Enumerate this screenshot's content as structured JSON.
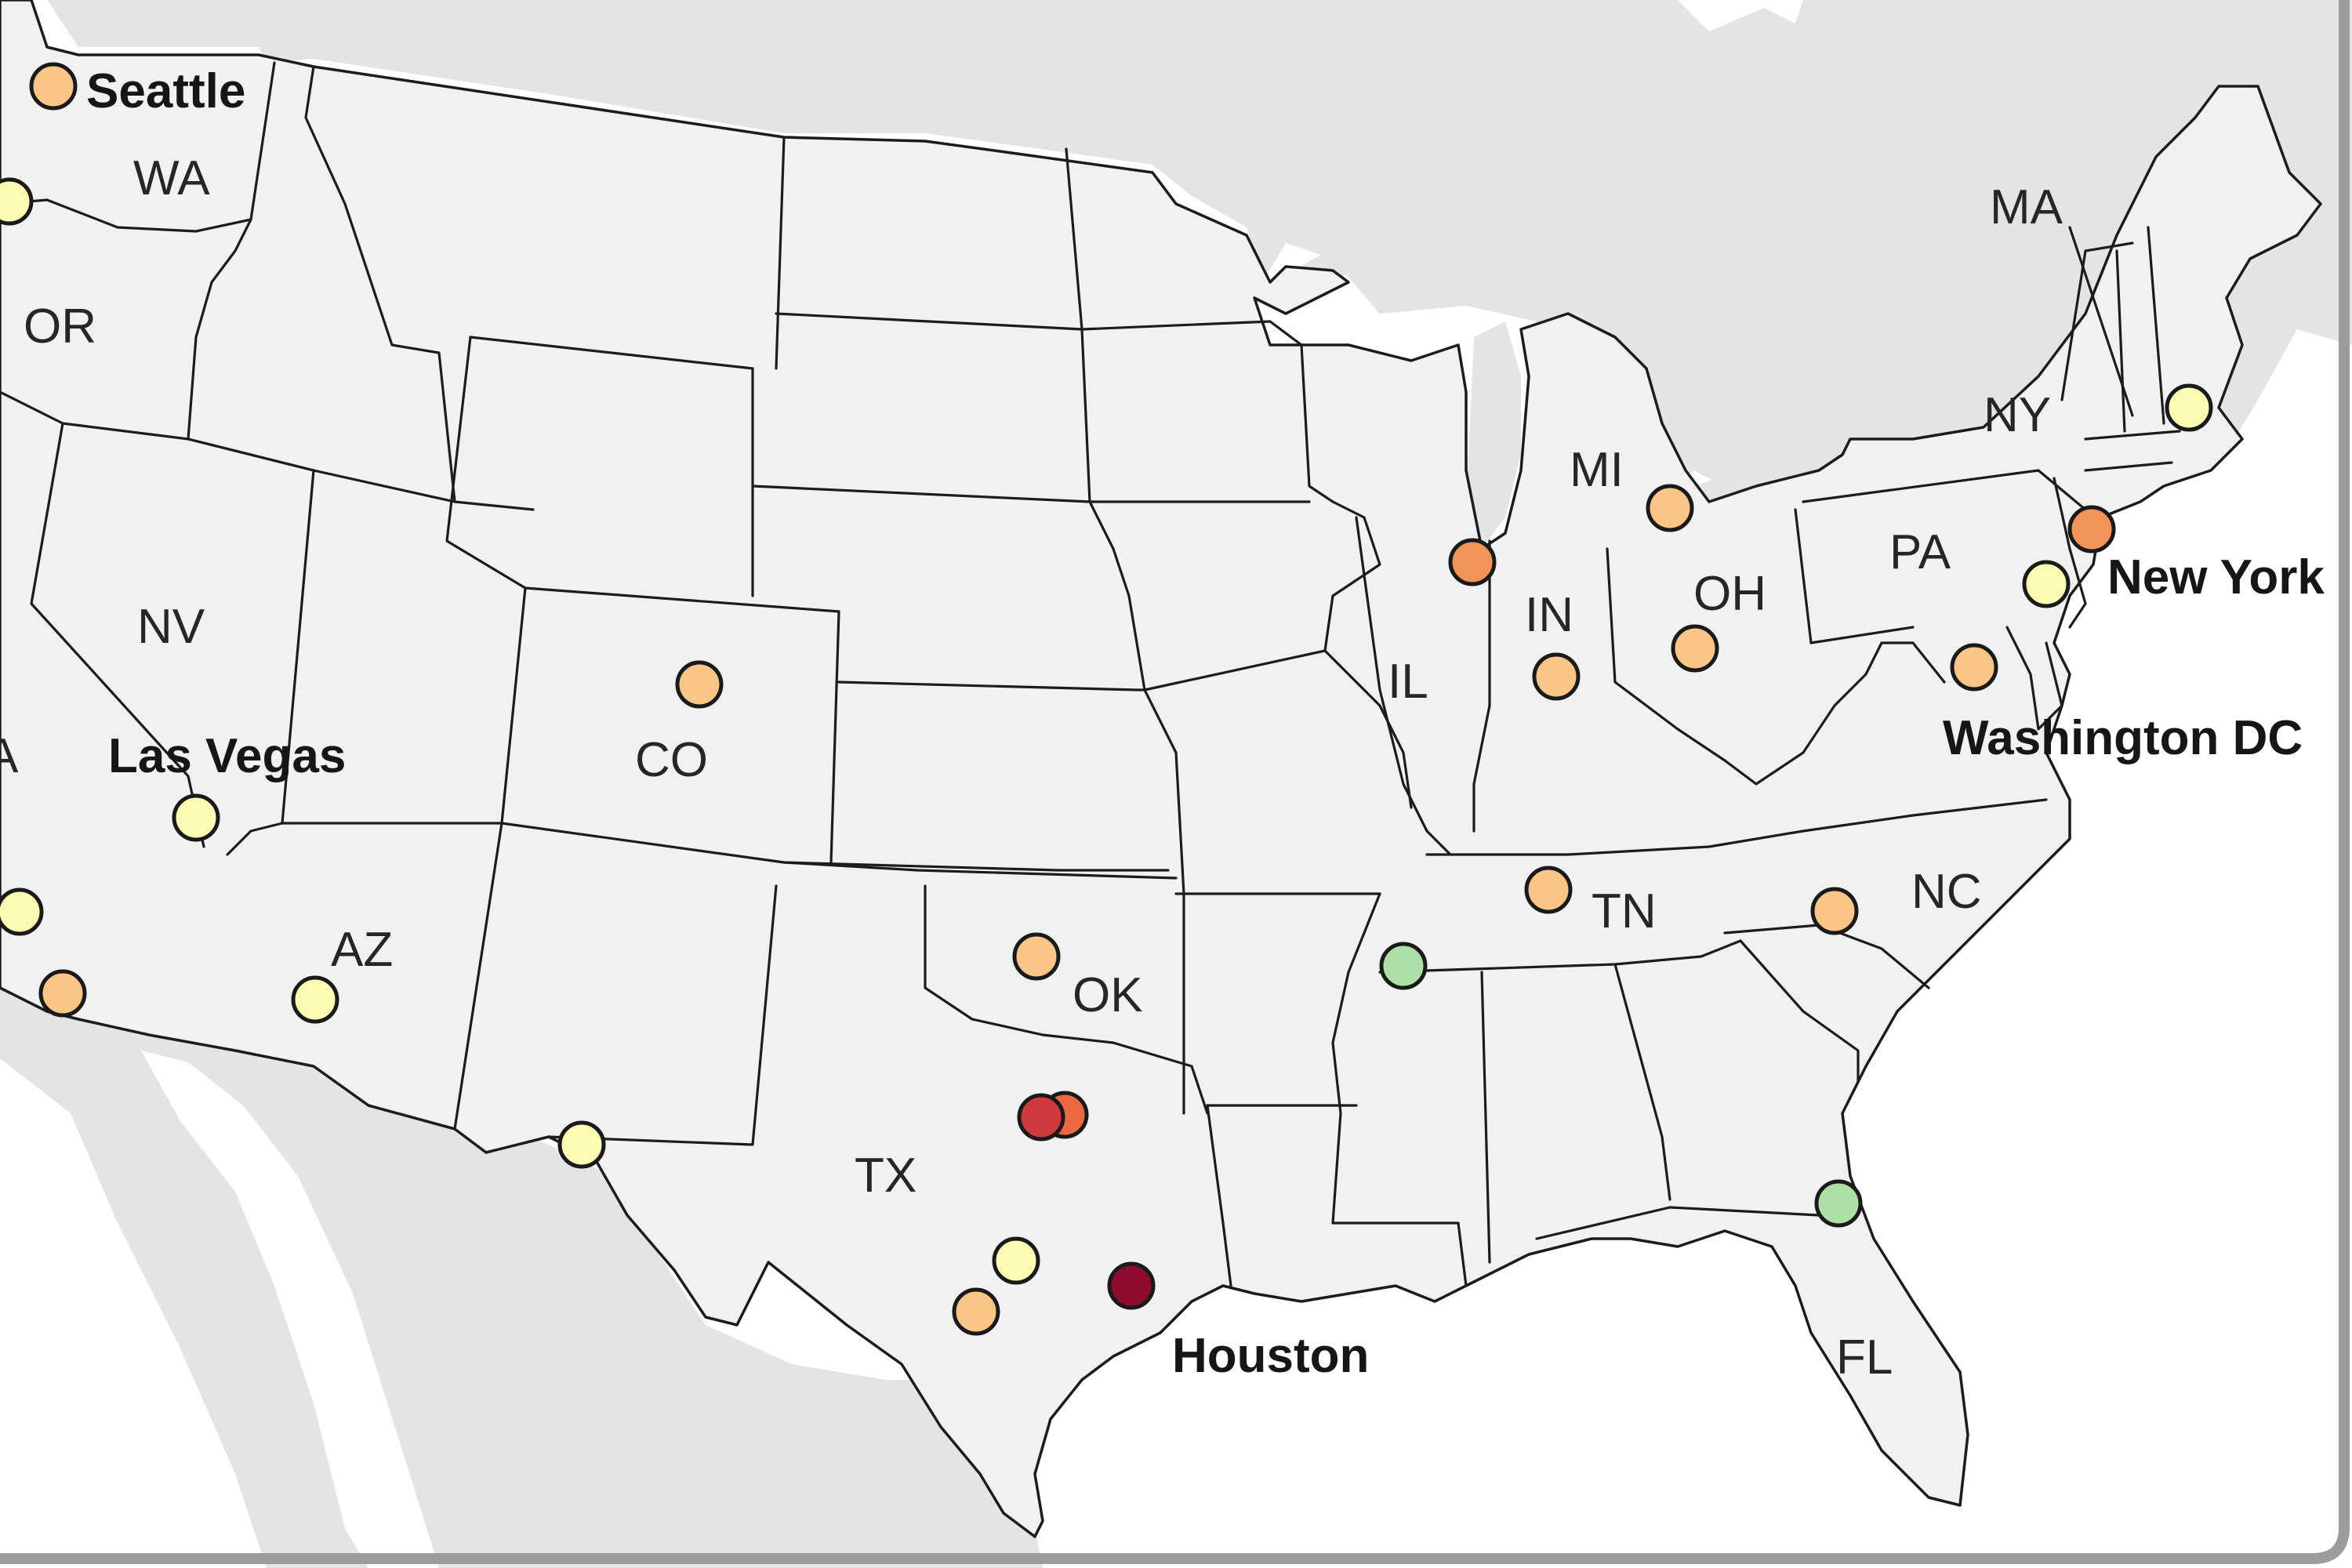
{
  "colors": {
    "ocean": "#ffffff",
    "foreign_land": "#e3e4e6",
    "us_land": "#f1f1f2",
    "border": "#1c1c1c",
    "frame": "#9c9c9e",
    "scale": {
      "pale_yellow": "#fdfbb3",
      "light_orange": "#f9c688",
      "orange": "#f2935a",
      "red_orange": "#ea6940",
      "red": "#d03a3e",
      "dark_red": "#8d0b2c",
      "green": "#ade0a6"
    }
  },
  "state_labels": [
    {
      "id": "wa",
      "text": "WA"
    },
    {
      "id": "or",
      "text": "OR"
    },
    {
      "id": "nv",
      "text": "NV"
    },
    {
      "id": "ca",
      "text": "A"
    },
    {
      "id": "az",
      "text": "AZ"
    },
    {
      "id": "co",
      "text": "CO"
    },
    {
      "id": "tx",
      "text": "TX"
    },
    {
      "id": "ok",
      "text": "OK"
    },
    {
      "id": "il",
      "text": "IL"
    },
    {
      "id": "in",
      "text": "IN"
    },
    {
      "id": "mi",
      "text": "MI"
    },
    {
      "id": "oh",
      "text": "OH"
    },
    {
      "id": "pa",
      "text": "PA"
    },
    {
      "id": "ny",
      "text": "NY"
    },
    {
      "id": "ma",
      "text": "MA"
    },
    {
      "id": "tn",
      "text": "TN"
    },
    {
      "id": "nc",
      "text": "NC"
    },
    {
      "id": "fl",
      "text": "FL"
    }
  ],
  "city_labels": [
    {
      "id": "seattle",
      "text": "Seattle"
    },
    {
      "id": "las-vegas",
      "text": "Las Vegas"
    },
    {
      "id": "houston",
      "text": "Houston"
    },
    {
      "id": "new-york",
      "text": "New York"
    },
    {
      "id": "washington-dc",
      "text": "Washington DC"
    }
  ],
  "markers": [
    {
      "id": "seattle",
      "color": "light_orange"
    },
    {
      "id": "wa-west",
      "color": "pale_yellow"
    },
    {
      "id": "las-vegas",
      "color": "pale_yellow"
    },
    {
      "id": "ca-north",
      "color": "pale_yellow"
    },
    {
      "id": "ca-south",
      "color": "light_orange"
    },
    {
      "id": "az",
      "color": "pale_yellow"
    },
    {
      "id": "co",
      "color": "light_orange"
    },
    {
      "id": "tx-west",
      "color": "pale_yellow"
    },
    {
      "id": "ok",
      "color": "light_orange"
    },
    {
      "id": "tx-dallas",
      "color": "red"
    },
    {
      "id": "tx-fortworth",
      "color": "red_orange"
    },
    {
      "id": "tx-central",
      "color": "pale_yellow"
    },
    {
      "id": "tx-south",
      "color": "light_orange"
    },
    {
      "id": "houston",
      "color": "dark_red"
    },
    {
      "id": "tn-memphis",
      "color": "green"
    },
    {
      "id": "tn-nashville",
      "color": "light_orange"
    },
    {
      "id": "il-chicago",
      "color": "orange"
    },
    {
      "id": "in",
      "color": "light_orange"
    },
    {
      "id": "mi",
      "color": "light_orange"
    },
    {
      "id": "oh",
      "color": "light_orange"
    },
    {
      "id": "nc",
      "color": "light_orange"
    },
    {
      "id": "fl",
      "color": "green"
    },
    {
      "id": "washington-dc",
      "color": "light_orange"
    },
    {
      "id": "pa-philly",
      "color": "pale_yellow"
    },
    {
      "id": "new-york",
      "color": "orange"
    },
    {
      "id": "ma",
      "color": "pale_yellow"
    }
  ]
}
